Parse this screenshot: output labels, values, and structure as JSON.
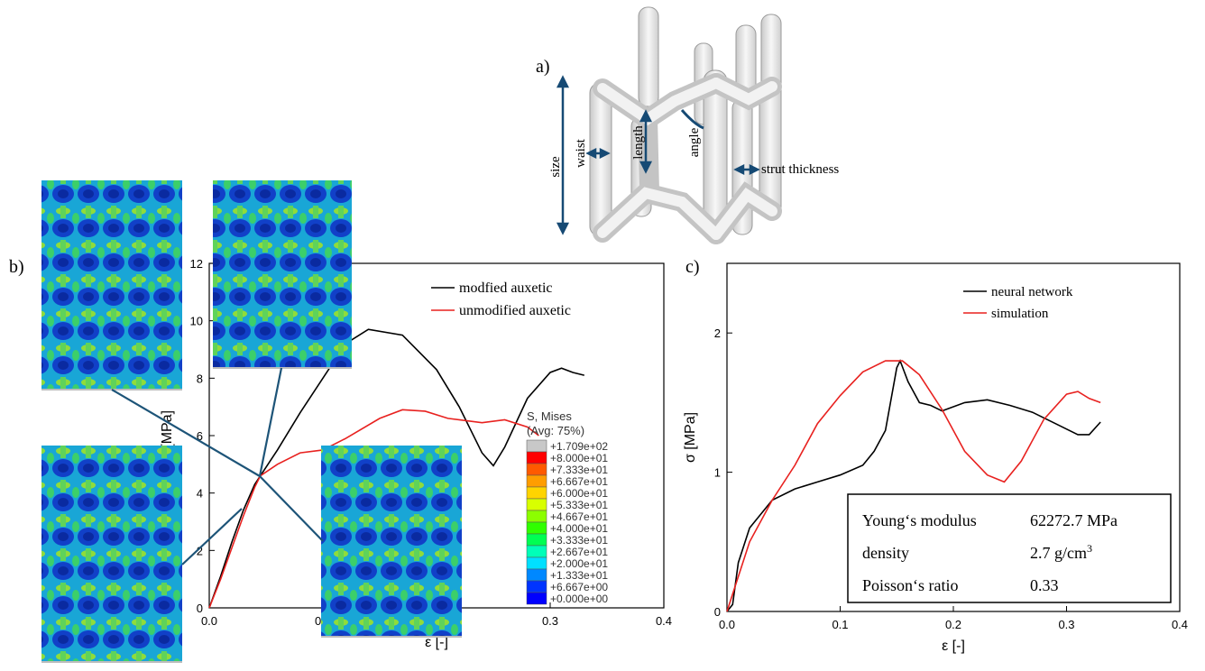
{
  "panels": {
    "a": {
      "label": "a)",
      "annotations": {
        "size": "size",
        "waist": "waist",
        "length": "length",
        "angle": "angle",
        "strut": "strut thickness"
      }
    },
    "b": {
      "label": "b)"
    },
    "c": {
      "label": "c)"
    }
  },
  "colorbar": {
    "title": "S, Mises",
    "subtitle": "(Avg: 75%)",
    "labels": [
      "+1.709e+02",
      "+8.000e+01",
      "+7.333e+01",
      "+6.667e+01",
      "+6.000e+01",
      "+5.333e+01",
      "+4.667e+01",
      "+4.000e+01",
      "+3.333e+01",
      "+2.667e+01",
      "+2.000e+01",
      "+1.333e+01",
      "+6.667e+00",
      "+0.000e+00"
    ],
    "colors": [
      "#c8c8c8",
      "#ff0000",
      "#ff5a00",
      "#ff9d00",
      "#ffd400",
      "#d8ff00",
      "#8cff00",
      "#30ff00",
      "#00ff52",
      "#00ffb8",
      "#00e0ff",
      "#0088ff",
      "#0034ff",
      "#0000ff"
    ]
  },
  "chart_data": [
    {
      "type": "line",
      "title": "",
      "xlabel": "ε [-]",
      "ylabel": "σ [MPa]",
      "xlim": [
        0,
        0.4
      ],
      "ylim": [
        0,
        12
      ],
      "xticks": [
        "0.0",
        "0.1",
        "0.2",
        "0.3",
        "0.4"
      ],
      "yticks": [
        "0",
        "2",
        "4",
        "6",
        "8",
        "10",
        "12"
      ],
      "legend_position": "top-right",
      "series": [
        {
          "name": "modfied auxetic",
          "color": "#000000",
          "x": [
            0,
            0.01,
            0.02,
            0.03,
            0.04,
            0.045,
            0.06,
            0.08,
            0.1,
            0.12,
            0.14,
            0.17,
            0.2,
            0.22,
            0.24,
            0.25,
            0.26,
            0.28,
            0.3,
            0.31,
            0.32,
            0.33
          ],
          "y": [
            0,
            1.1,
            2.3,
            3.4,
            4.3,
            4.6,
            5.5,
            6.8,
            8.0,
            9.2,
            9.7,
            9.5,
            8.3,
            7.0,
            5.4,
            4.95,
            5.6,
            7.3,
            8.2,
            8.35,
            8.2,
            8.1
          ]
        },
        {
          "name": "unmodified auxetic",
          "color": "#e8211f",
          "x": [
            0,
            0.01,
            0.02,
            0.03,
            0.04,
            0.045,
            0.06,
            0.08,
            0.1,
            0.12,
            0.15,
            0.17,
            0.19,
            0.21,
            0.24,
            0.26,
            0.28,
            0.29
          ],
          "y": [
            0,
            1.0,
            2.1,
            3.2,
            4.2,
            4.6,
            5.0,
            5.4,
            5.5,
            5.9,
            6.6,
            6.9,
            6.85,
            6.6,
            6.45,
            6.55,
            6.3,
            6.0
          ]
        }
      ]
    },
    {
      "type": "line",
      "title": "",
      "xlabel": "ε [-]",
      "ylabel": "σ [MPa]",
      "xlim": [
        0,
        0.4
      ],
      "ylim": [
        0,
        2.5
      ],
      "xticks": [
        "0.0",
        "0.1",
        "0.2",
        "0.3",
        "0.4"
      ],
      "yticks": [
        "0",
        "1",
        "2"
      ],
      "legend_position": "top-right",
      "series": [
        {
          "name": "neural network",
          "color": "#000000",
          "x": [
            0,
            0.005,
            0.01,
            0.02,
            0.04,
            0.06,
            0.08,
            0.1,
            0.12,
            0.13,
            0.14,
            0.15,
            0.153,
            0.16,
            0.17,
            0.18,
            0.19,
            0.21,
            0.23,
            0.25,
            0.27,
            0.29,
            0.31,
            0.32,
            0.33
          ],
          "y": [
            0,
            0.05,
            0.35,
            0.6,
            0.8,
            0.88,
            0.93,
            0.98,
            1.05,
            1.15,
            1.3,
            1.75,
            1.8,
            1.65,
            1.5,
            1.48,
            1.44,
            1.5,
            1.52,
            1.48,
            1.43,
            1.35,
            1.27,
            1.27,
            1.36
          ]
        },
        {
          "name": "simulation",
          "color": "#e8211f",
          "x": [
            0,
            0.01,
            0.02,
            0.04,
            0.06,
            0.08,
            0.1,
            0.12,
            0.14,
            0.155,
            0.17,
            0.19,
            0.21,
            0.23,
            0.245,
            0.26,
            0.28,
            0.3,
            0.31,
            0.32,
            0.33
          ],
          "y": [
            0,
            0.25,
            0.5,
            0.8,
            1.05,
            1.35,
            1.55,
            1.72,
            1.8,
            1.8,
            1.7,
            1.45,
            1.15,
            0.98,
            0.93,
            1.08,
            1.38,
            1.56,
            1.58,
            1.53,
            1.5
          ]
        }
      ]
    }
  ],
  "properties": [
    {
      "name": "Young‘s modulus",
      "value": "62272.7 MPa"
    },
    {
      "name": "density",
      "value": "2.7 g/cm",
      "sup": "3"
    },
    {
      "name": "Poisson‘s ratio",
      "value": "0.33"
    }
  ]
}
